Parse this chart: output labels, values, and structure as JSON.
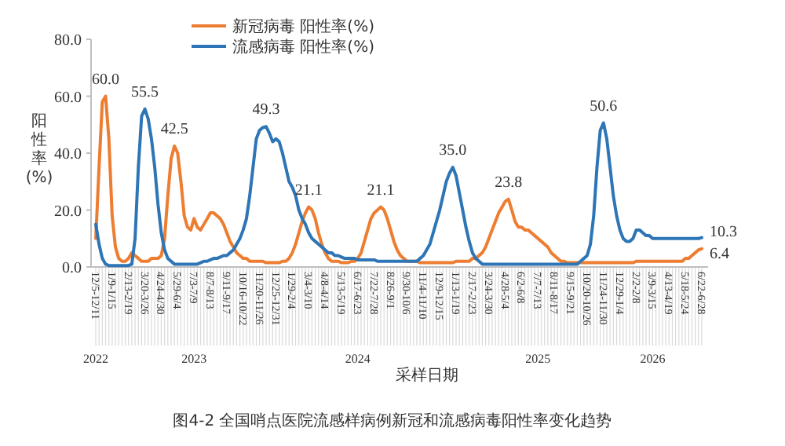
{
  "chart_data": {
    "type": "line",
    "title": "图4-2 全国哨点医院流感样病例新冠和流感病毒阳性率变化趋势",
    "xlabel": "采样日期",
    "ylabel": "阳性率(%)",
    "categories": [
      "12/5-12/11",
      null,
      null,
      null,
      null,
      "1/9-1/15",
      null,
      null,
      null,
      null,
      "2/13-2/19",
      null,
      null,
      null,
      null,
      "3/20-3/26",
      null,
      null,
      null,
      null,
      "4/24-4/30",
      null,
      null,
      null,
      null,
      "5/29-6/4",
      null,
      null,
      null,
      null,
      "7/3-7/9",
      null,
      null,
      null,
      null,
      "8/7-8/13",
      null,
      null,
      null,
      null,
      "9/11-9/17",
      null,
      null,
      null,
      null,
      "10/16-10/22",
      null,
      null,
      null,
      null,
      "11/20-11/26",
      null,
      null,
      null,
      null,
      "12/25-12/31",
      null,
      null,
      null,
      null,
      "1/29-2/4",
      null,
      null,
      null,
      null,
      "3/4-3/10",
      null,
      null,
      null,
      null,
      "4/8-4/14",
      null,
      null,
      null,
      null,
      "5/13-5/19",
      null,
      null,
      null,
      null,
      "6/17-6/23",
      null,
      null,
      null,
      null,
      "7/22-7/28",
      null,
      null,
      null,
      null,
      "8/26-9/1",
      null,
      null,
      null,
      null,
      "9/30-10/6",
      null,
      null,
      null,
      null,
      "11/4-11/10",
      null,
      null,
      null,
      null,
      "12/9-12/15",
      null,
      null,
      null,
      null,
      "1/13-1/19",
      null,
      null,
      null,
      null,
      "2/17-2/23",
      null,
      null,
      null,
      null,
      "3/24-3/30",
      null,
      null,
      null,
      null,
      "4/28-5/4",
      null,
      null,
      null,
      null,
      "6/2-6/8",
      null,
      null,
      null,
      null,
      "7/7-7/13",
      null,
      null,
      null,
      null,
      "8/11-8/17",
      null,
      null,
      null,
      null,
      "9/15-9/21",
      null,
      null,
      null,
      null,
      "10/20-10/26",
      null,
      null,
      null,
      null,
      "11/24-11/30",
      null,
      null,
      null,
      null,
      "12/29-1/4",
      null,
      null,
      null,
      null,
      "2/2-2/8",
      null,
      null,
      null,
      null,
      "3/9-3/15",
      null,
      null,
      null,
      null,
      "4/13-4/19",
      null,
      null,
      null,
      null,
      "5/18-5/24",
      null,
      null,
      null,
      null,
      "6/22-6/28"
    ],
    "series": [
      {
        "name": "新冠病毒 阳性率(%)",
        "color": "#ed7d31",
        "values": [
          10,
          35,
          58,
          60.0,
          45,
          18,
          7,
          3,
          2,
          2,
          3,
          5,
          4,
          3,
          2,
          2,
          2,
          3,
          3,
          3,
          4,
          10,
          25,
          38,
          42.5,
          40,
          30,
          18,
          14,
          13,
          17,
          14,
          13,
          15,
          17,
          19,
          19,
          18,
          17,
          15,
          12,
          9,
          7,
          5,
          4,
          3,
          3,
          2,
          2,
          2,
          2,
          2,
          1.5,
          1.5,
          1.5,
          1.5,
          1.5,
          2,
          2,
          3,
          5,
          8,
          12,
          16,
          19,
          21.1,
          20,
          17,
          12,
          8,
          5,
          3,
          2,
          2,
          2,
          1.5,
          1.5,
          1.5,
          2,
          2,
          3,
          5,
          9,
          13,
          17,
          19,
          20,
          21.1,
          20,
          17,
          13,
          9,
          6,
          4,
          3,
          2,
          2,
          2,
          2,
          1.5,
          1.5,
          1.5,
          1.5,
          1.5,
          1.5,
          1.5,
          1.5,
          1.5,
          1.5,
          1.5,
          2,
          2,
          2,
          2,
          2,
          3,
          3,
          4,
          5,
          7,
          10,
          13,
          16,
          19,
          21,
          23,
          23.8,
          20,
          16,
          14,
          14,
          13,
          13,
          12,
          11,
          10,
          9,
          8,
          7,
          5,
          4,
          3,
          2,
          2,
          1.5,
          1.5,
          1.5,
          1.5,
          1.5,
          1.5,
          1.5,
          1.5,
          1.5,
          1.5,
          1.5,
          1.5,
          1.5,
          1.5,
          1.5,
          1.5,
          1.5,
          1.5,
          1.5,
          1.5,
          1.5,
          2,
          2,
          2,
          2,
          2,
          2,
          2,
          2,
          2,
          2,
          2,
          2,
          2,
          2,
          2,
          3,
          3,
          4,
          5,
          6,
          6.4
        ],
        "value_labels": [
          null,
          null,
          null,
          "60.0",
          null,
          null,
          null,
          null,
          null,
          null,
          null,
          null,
          null,
          null,
          null,
          null,
          null,
          null,
          null,
          null,
          null,
          null,
          null,
          null,
          "42.5",
          null,
          null,
          null,
          null,
          null,
          null,
          null,
          null,
          null,
          null,
          null,
          null,
          null,
          null,
          null,
          null,
          null,
          null,
          null,
          null,
          null,
          null,
          null,
          null,
          null,
          null,
          null,
          null,
          null,
          null,
          null,
          null,
          null,
          null,
          null,
          null,
          null,
          null,
          null,
          null,
          "21.1",
          null,
          null,
          null,
          null,
          null,
          null,
          null,
          null,
          null,
          null,
          null,
          null,
          null,
          null,
          null,
          null,
          null,
          null,
          null,
          null,
          null,
          "21.1",
          null,
          null,
          null,
          null,
          null,
          null,
          null,
          null,
          null,
          null,
          null,
          null,
          null,
          null,
          null,
          null,
          null,
          null,
          null,
          null,
          null,
          null,
          null,
          null,
          null,
          null,
          null,
          null,
          null,
          null,
          null,
          null,
          null,
          null,
          null,
          null,
          null,
          null,
          "23.8",
          null,
          null,
          null,
          null,
          null,
          null,
          null,
          null,
          null,
          null,
          null,
          null,
          null,
          null,
          null,
          null,
          null,
          null,
          null,
          null,
          null,
          null,
          null,
          null,
          null,
          null,
          null,
          null,
          null,
          null,
          null,
          null,
          null,
          null,
          null,
          null,
          null,
          null,
          null,
          null,
          null,
          null,
          null,
          null,
          null,
          null,
          null,
          null,
          null,
          null,
          null,
          null,
          null,
          null,
          null,
          null,
          null,
          null,
          "6.4"
        ]
      },
      {
        "name": "流感病毒 阳性率(%)",
        "color": "#2e75b6",
        "values": [
          15,
          8,
          3,
          1,
          0.5,
          0.5,
          0.5,
          0.5,
          0.5,
          0.5,
          0.5,
          1,
          10,
          35,
          53,
          55.5,
          52,
          45,
          35,
          22,
          12,
          6,
          3,
          2,
          1,
          1,
          1,
          1,
          1,
          1,
          1,
          1,
          1.5,
          2,
          2,
          2.5,
          3,
          3,
          3.5,
          4,
          4,
          5,
          6,
          8,
          10,
          13,
          17,
          25,
          35,
          45,
          48,
          49,
          49.3,
          47,
          44,
          45,
          44,
          40,
          35,
          30,
          28,
          25,
          20,
          17,
          15,
          12,
          10,
          9,
          8,
          7,
          6,
          5,
          5,
          4,
          4,
          3.5,
          3,
          3,
          3,
          3,
          2.5,
          2.5,
          2.5,
          2.5,
          2.5,
          2.5,
          2,
          2,
          2,
          2,
          2,
          2,
          2,
          2,
          2,
          2,
          2,
          2,
          2,
          3,
          4,
          6,
          8,
          12,
          16,
          20,
          25,
          30,
          33,
          35.0,
          32,
          26,
          20,
          14,
          9,
          5,
          3,
          2,
          1,
          1,
          1,
          1,
          1,
          1,
          1,
          1,
          1,
          1,
          1,
          1,
          1,
          1,
          1,
          1,
          1,
          1,
          1,
          1,
          1,
          1,
          1,
          1,
          1,
          1,
          1,
          1,
          1,
          1,
          2,
          3,
          4,
          8,
          18,
          35,
          48,
          50.6,
          45,
          35,
          25,
          18,
          13,
          10,
          9,
          9,
          10,
          13,
          13,
          12,
          11,
          11,
          10,
          10,
          10,
          10,
          10,
          10,
          10,
          10,
          10,
          10,
          10,
          10,
          10,
          10,
          10,
          10.3
        ],
        "value_labels": [
          null,
          null,
          null,
          null,
          null,
          null,
          null,
          null,
          null,
          null,
          null,
          null,
          null,
          null,
          null,
          "55.5",
          null,
          null,
          null,
          null,
          null,
          null,
          null,
          null,
          null,
          null,
          null,
          null,
          null,
          null,
          null,
          null,
          null,
          null,
          null,
          null,
          null,
          null,
          null,
          null,
          null,
          null,
          null,
          null,
          null,
          null,
          null,
          null,
          null,
          null,
          null,
          null,
          "49.3",
          null,
          null,
          null,
          null,
          null,
          null,
          null,
          null,
          null,
          null,
          null,
          null,
          null,
          null,
          null,
          null,
          null,
          null,
          null,
          null,
          null,
          null,
          null,
          null,
          null,
          null,
          null,
          null,
          null,
          null,
          null,
          null,
          null,
          null,
          null,
          null,
          null,
          null,
          null,
          null,
          null,
          null,
          null,
          null,
          null,
          null,
          null,
          null,
          null,
          null,
          null,
          null,
          null,
          null,
          null,
          null,
          "35.0",
          null,
          null,
          null,
          null,
          null,
          null,
          null,
          null,
          null,
          null,
          null,
          null,
          null,
          null,
          null,
          null,
          null,
          null,
          null,
          null,
          null,
          null,
          null,
          null,
          null,
          null,
          null,
          null,
          null,
          null,
          null,
          null,
          null,
          null,
          null,
          null,
          null,
          null,
          null,
          null,
          null,
          null,
          null,
          null,
          null,
          "50.6",
          null,
          null,
          null,
          null,
          null,
          null,
          null,
          null,
          null,
          null,
          null,
          null,
          null,
          null,
          null,
          null,
          null,
          null,
          null,
          null,
          null,
          null,
          null,
          null,
          null,
          null,
          null,
          null,
          null,
          "10.3"
        ]
      }
    ],
    "ylim": [
      0,
      80
    ],
    "yticks": [
      {
        "value": 0,
        "label": "0.0"
      },
      {
        "value": 20,
        "label": "20.0"
      },
      {
        "value": 40,
        "label": "40.0"
      },
      {
        "value": 60,
        "label": "60.0"
      },
      {
        "value": 80,
        "label": "80.0"
      }
    ],
    "legend": "top",
    "annotations": [
      {
        "text": "2022",
        "x": "12/5-12/11"
      },
      {
        "text": "2023",
        "x": "7/3-7/9"
      },
      {
        "text": "2024",
        "x": "6/17-6/23"
      },
      {
        "text": "2025",
        "x": "7/7-7/13"
      },
      {
        "text": "2026",
        "x": "3/9-3/15"
      }
    ]
  }
}
